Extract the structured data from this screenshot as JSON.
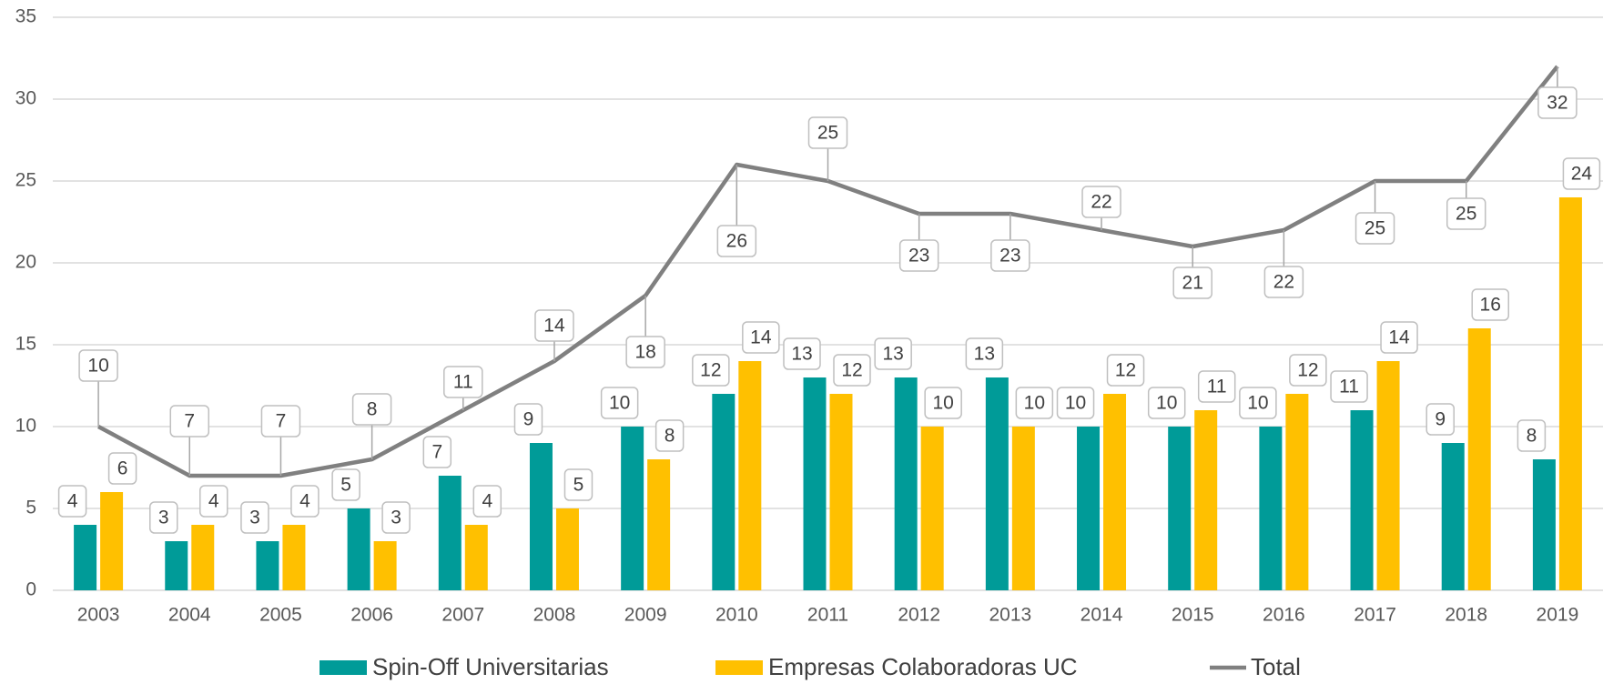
{
  "chart_data": {
    "type": "bar",
    "categories": [
      "2003",
      "2004",
      "2005",
      "2006",
      "2007",
      "2008",
      "2009",
      "2010",
      "2011",
      "2012",
      "2013",
      "2014",
      "2015",
      "2016",
      "2017",
      "2018",
      "2019"
    ],
    "series": [
      {
        "name": "Spin-Off Universitarias",
        "color": "#009b98",
        "type": "bar",
        "values": [
          4,
          3,
          3,
          5,
          7,
          9,
          10,
          12,
          13,
          13,
          13,
          10,
          10,
          10,
          11,
          9,
          8
        ]
      },
      {
        "name": "Empresas Colaboradoras UC",
        "color": "#ffc000",
        "type": "bar",
        "values": [
          6,
          4,
          4,
          3,
          4,
          5,
          8,
          14,
          12,
          10,
          10,
          12,
          11,
          12,
          14,
          16,
          24
        ]
      },
      {
        "name": "Total",
        "color": "#808080",
        "type": "line",
        "values": [
          10,
          7,
          7,
          8,
          11,
          14,
          18,
          26,
          25,
          23,
          23,
          22,
          21,
          22,
          25,
          25,
          32
        ]
      }
    ],
    "ylim": [
      0,
      35
    ],
    "yticks": [
      0,
      5,
      10,
      15,
      20,
      25,
      30,
      35
    ],
    "grid": true,
    "legend": "bottom"
  }
}
